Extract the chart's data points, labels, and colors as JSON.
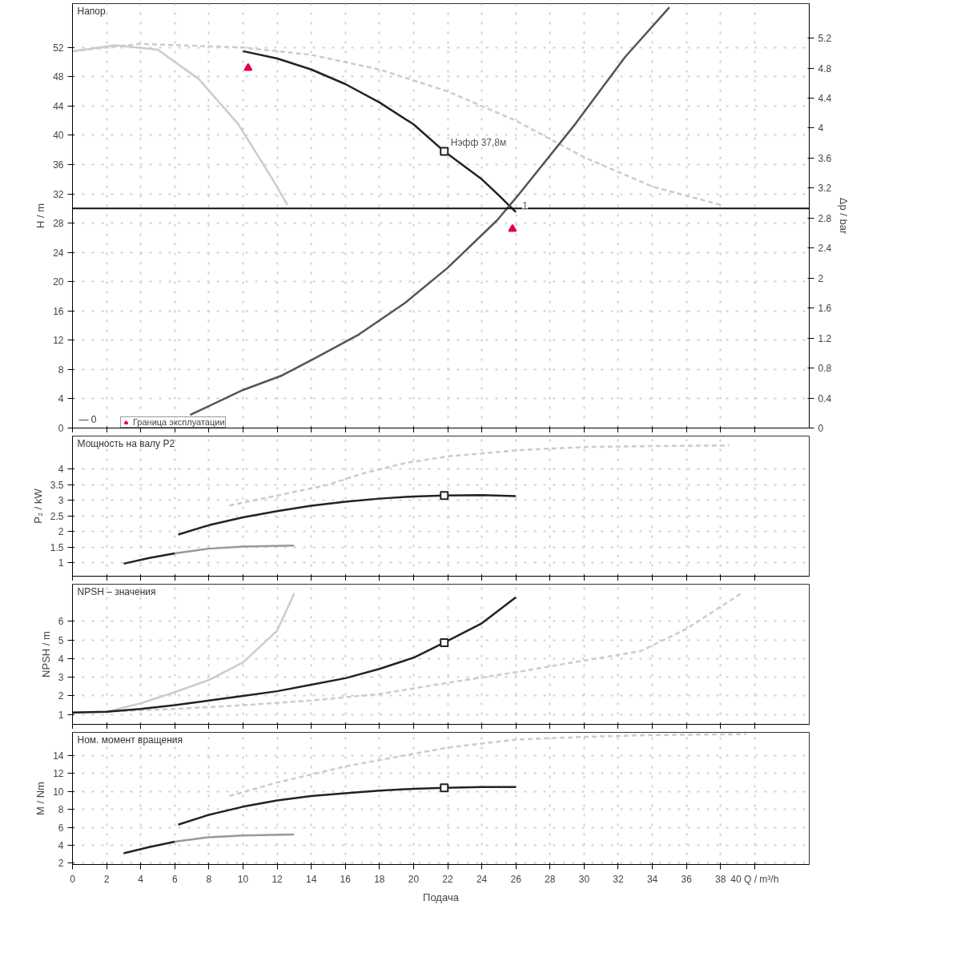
{
  "chart_data": [
    {
      "type": "line",
      "title": "Напор",
      "ylabel": "H / m",
      "y2label": "Δp / bar",
      "xlim": [
        0,
        43.2
      ],
      "ylim": [
        0,
        58
      ],
      "yticks": [
        0,
        4,
        8,
        12,
        16,
        20,
        24,
        28,
        32,
        36,
        40,
        44,
        48,
        52
      ],
      "y2lim": [
        0,
        5.66
      ],
      "y2ticks": [
        0,
        0.4,
        0.8,
        1.2,
        1.6,
        2,
        2.4,
        2.8,
        3.2,
        3.6,
        4,
        4.4,
        4.8,
        5.2
      ],
      "xticks": [
        0,
        2,
        4,
        6,
        8,
        10,
        12,
        14,
        16,
        18,
        20,
        22,
        24,
        26,
        28,
        30,
        32,
        34,
        36,
        38,
        40
      ],
      "grid": true,
      "tick_labels": "y",
      "legend": "bottom left",
      "series": [
        {
          "color": "#cccccc",
          "line_style": "dashed",
          "x": [
            0,
            4,
            10,
            14,
            18,
            22,
            26,
            30,
            34,
            38
          ],
          "values": [
            51.5,
            52.5,
            52,
            51,
            49,
            46,
            42,
            37,
            33,
            30.5
          ]
        },
        {
          "color": "#cccccc",
          "x": [
            0,
            2.5,
            5,
            7.4,
            9.7,
            11.6,
            12.6
          ],
          "values": [
            51.5,
            52.3,
            51.7,
            47.7,
            41.6,
            34.5,
            30.5
          ]
        },
        {
          "color": "#222222",
          "x": [
            10,
            12,
            14,
            16,
            18,
            20,
            21.8,
            24,
            25,
            26
          ],
          "values": [
            51.5,
            50.5,
            49,
            47,
            44.5,
            41.5,
            37.8,
            34,
            31.8,
            29.5
          ]
        },
        {
          "color": "#555555",
          "x": [
            6.9,
            10,
            12.3,
            14.1,
            16.8,
            19.5,
            22,
            24.9,
            26.2,
            29.5,
            32.4,
            35
          ],
          "values": [
            1.8,
            5.2,
            7.2,
            9.4,
            12.8,
            17.1,
            21.9,
            28.4,
            32,
            41.6,
            50.7,
            57.5
          ]
        },
        {
          "type": "scatter",
          "marker": "square",
          "color": "#222222",
          "x": [
            21.8
          ],
          "values": [
            37.8
          ]
        },
        {
          "type": "scatter",
          "marker": "triangle",
          "name": "Граница эксплуатации",
          "color": "#e0004d",
          "x": [
            10.3,
            25.8
          ],
          "values": [
            49.2,
            27.2
          ]
        }
      ],
      "ref_lines": [
        {
          "axis": "y",
          "value": 30,
          "color": "#111111"
        }
      ],
      "annotations": [
        {
          "text": "Нэфф  37,8м",
          "x": 21.8,
          "y": 37.8
        },
        {
          "text": "1",
          "x": 26,
          "y": 29.5
        },
        "— 0"
      ]
    },
    {
      "type": "line",
      "title": "Мощность на валу P2",
      "ylabel": "P₂ / kW",
      "xlim": [
        0,
        43.2
      ],
      "ylim": [
        0.57,
        5.05
      ],
      "yticks": [
        1,
        1.5,
        2,
        2.5,
        3,
        3.5,
        4
      ],
      "xticks": [
        0,
        2,
        4,
        6,
        8,
        10,
        12,
        14,
        16,
        18,
        20,
        22,
        24,
        26,
        28,
        30,
        32,
        34,
        36,
        38,
        40
      ],
      "grid": true,
      "tick_labels": "y",
      "series": [
        {
          "color": "#cccccc",
          "line_style": "dashed",
          "x": [
            9.2,
            12,
            14.9,
            17,
            19.6,
            22,
            26.2,
            30,
            34,
            38.5
          ],
          "values": [
            2.83,
            3.15,
            3.48,
            3.85,
            4.2,
            4.4,
            4.6,
            4.7,
            4.73,
            4.75
          ]
        },
        {
          "color": "#999999",
          "x": [
            6,
            8,
            10,
            13
          ],
          "values": [
            1.3,
            1.45,
            1.52,
            1.55
          ]
        },
        {
          "color": "#222222",
          "x": [
            3,
            4.5,
            6
          ],
          "values": [
            0.97,
            1.15,
            1.3
          ]
        },
        {
          "color": "#222222",
          "x": [
            6.2,
            8,
            10,
            12,
            14,
            16,
            18,
            20,
            21.8,
            24,
            26
          ],
          "values": [
            1.9,
            2.2,
            2.45,
            2.65,
            2.82,
            2.95,
            3.05,
            3.12,
            3.15,
            3.16,
            3.13
          ]
        },
        {
          "type": "scatter",
          "marker": "square",
          "color": "#222222",
          "x": [
            21.8
          ],
          "values": [
            3.15
          ]
        }
      ]
    },
    {
      "type": "line",
      "title": "NPSH – значения",
      "ylabel": "NPSH / m",
      "xlim": [
        0,
        43.2
      ],
      "ylim": [
        0.47,
        8.0
      ],
      "yticks": [
        1,
        2,
        3,
        4,
        5,
        6
      ],
      "xticks": [
        0,
        2,
        4,
        6,
        8,
        10,
        12,
        14,
        16,
        18,
        20,
        22,
        24,
        26,
        28,
        30,
        32,
        34,
        36,
        38,
        40
      ],
      "grid": true,
      "tick_labels": "y",
      "series": [
        {
          "color": "#cccccc",
          "x": [
            0,
            2,
            4,
            6,
            8,
            10,
            12,
            13
          ],
          "values": [
            1.1,
            1.15,
            1.6,
            2.2,
            2.85,
            3.8,
            5.5,
            7.5
          ]
        },
        {
          "color": "#cccccc",
          "line_style": "dashed",
          "x": [
            2,
            6,
            10,
            14,
            18,
            22,
            26.2,
            30,
            33.3,
            36,
            39.2
          ],
          "values": [
            1.15,
            1.3,
            1.5,
            1.75,
            2.1,
            2.7,
            3.3,
            3.9,
            4.4,
            5.6,
            7.5
          ]
        },
        {
          "color": "#222222",
          "x": [
            0,
            2,
            4,
            6,
            8,
            10,
            12,
            14,
            16,
            18,
            20,
            21.8,
            24,
            26
          ],
          "values": [
            1.1,
            1.15,
            1.3,
            1.5,
            1.75,
            2.0,
            2.25,
            2.6,
            2.95,
            3.45,
            4.05,
            4.86,
            5.9,
            7.3
          ]
        },
        {
          "type": "scatter",
          "marker": "square",
          "color": "#222222",
          "x": [
            21.8
          ],
          "values": [
            4.86
          ]
        }
      ]
    },
    {
      "type": "line",
      "title": "Ном. момент вращения",
      "ylabel": "M / Nm",
      "xlabel": "Подача",
      "xlim": [
        0,
        43.2
      ],
      "ylim": [
        1.85,
        16.6
      ],
      "yticks": [
        2,
        4,
        6,
        8,
        10,
        12,
        14
      ],
      "xticks": [
        0,
        2,
        4,
        6,
        8,
        10,
        12,
        14,
        16,
        18,
        20,
        22,
        24,
        26,
        28,
        30,
        32,
        34,
        36,
        38,
        {
          "value": 40,
          "label": "40 Q / m³/h"
        }
      ],
      "grid": true,
      "series": [
        {
          "color": "#cccccc",
          "line_style": "dashed",
          "x": [
            9.2,
            12,
            16,
            20,
            22,
            26,
            30,
            34,
            39.5
          ],
          "values": [
            9.5,
            11,
            12.8,
            14.2,
            14.9,
            15.8,
            16.1,
            16.3,
            16.4
          ]
        },
        {
          "color": "#999999",
          "x": [
            6,
            8,
            10,
            13
          ],
          "values": [
            4.4,
            4.9,
            5.1,
            5.2
          ]
        },
        {
          "color": "#222222",
          "x": [
            3,
            4.5,
            6
          ],
          "values": [
            3.1,
            3.8,
            4.4
          ]
        },
        {
          "color": "#222222",
          "x": [
            6.2,
            8,
            10,
            12,
            14,
            16,
            18,
            20,
            21.8,
            24,
            26
          ],
          "values": [
            6.3,
            7.4,
            8.3,
            9.0,
            9.5,
            9.8,
            10.1,
            10.3,
            10.4,
            10.5,
            10.5
          ]
        },
        {
          "type": "scatter",
          "marker": "square",
          "color": "#222222",
          "x": [
            21.8
          ],
          "values": [
            10.4
          ]
        }
      ]
    }
  ]
}
